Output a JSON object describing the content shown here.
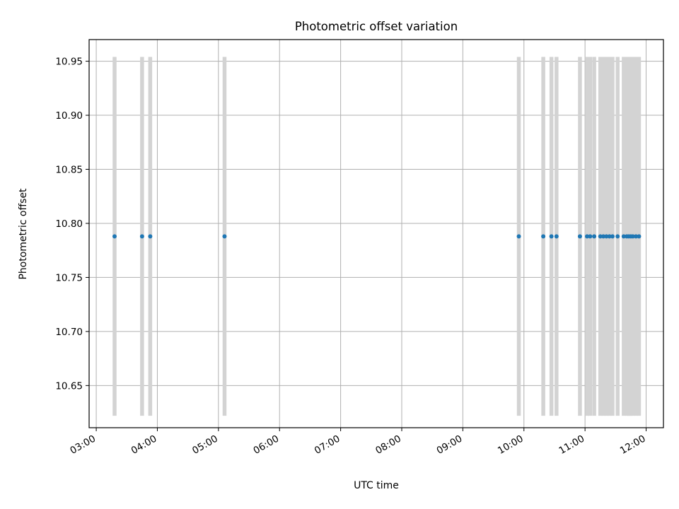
{
  "chart_data": {
    "type": "scatter",
    "title": "Photometric offset variation",
    "xlabel": "UTC time",
    "ylabel": "Photometric offset",
    "x_axis_kind": "time",
    "xlim": [
      "02:53",
      "12:17"
    ],
    "ylim": [
      10.611,
      10.97
    ],
    "x_ticks": [
      "03:00",
      "04:00",
      "05:00",
      "06:00",
      "07:00",
      "08:00",
      "09:00",
      "10:00",
      "11:00",
      "12:00"
    ],
    "y_ticks": [
      "10.65",
      "10.70",
      "10.75",
      "10.80",
      "10.85",
      "10.90",
      "10.95"
    ],
    "grid": true,
    "series_color": "#1f77b4",
    "band_color": "#d3d3d3",
    "band_ymin": 10.622,
    "band_ymax": 10.954,
    "series": [
      {
        "x": [
          "03:18",
          "03:45",
          "03:53",
          "05:06",
          "09:55",
          "10:19",
          "10:27",
          "10:32",
          "10:55",
          "11:02",
          "11:05",
          "11:09",
          "11:15",
          "11:18",
          "11:21",
          "11:24",
          "11:27",
          "11:32",
          "11:38",
          "11:41",
          "11:43",
          "11:45",
          "11:47",
          "11:50",
          "11:53"
        ],
        "y": [
          10.788,
          10.788,
          10.788,
          10.788,
          10.788,
          10.788,
          10.788,
          10.788,
          10.788,
          10.788,
          10.788,
          10.788,
          10.788,
          10.788,
          10.788,
          10.788,
          10.788,
          10.788,
          10.788,
          10.788,
          10.788,
          10.788,
          10.788,
          10.788,
          10.788
        ]
      }
    ]
  }
}
